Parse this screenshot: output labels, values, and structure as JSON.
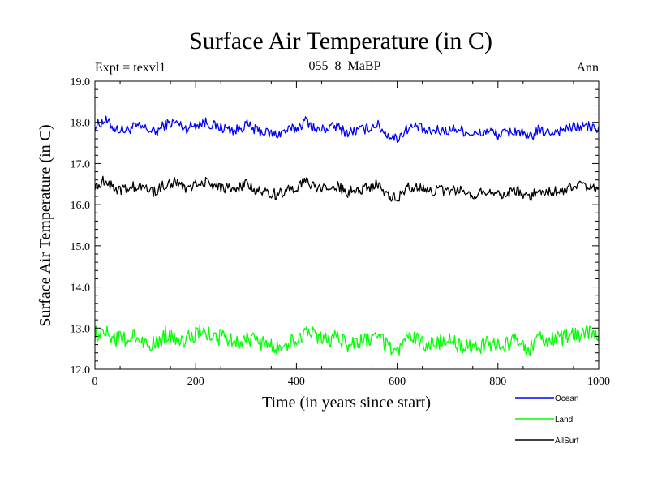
{
  "chart_data": {
    "type": "line",
    "title": "Surface Air Temperature (in C)",
    "subtitle": "055_8_MaBP",
    "top_left_label": "Expt = texvl1",
    "top_right_label": "Ann",
    "xlabel": "Time (in years since start)",
    "ylabel": "Surface Air Temperature (in C)",
    "xlim": [
      0,
      1000
    ],
    "ylim": [
      12.0,
      19.0
    ],
    "x_ticks": [
      0,
      200,
      400,
      600,
      800,
      1000
    ],
    "x_tick_labels": [
      "0",
      "200",
      "400",
      "600",
      "800",
      "1000"
    ],
    "y_ticks": [
      12.0,
      13.0,
      14.0,
      15.0,
      16.0,
      17.0,
      18.0,
      19.0
    ],
    "y_tick_labels": [
      "12.0",
      "13.0",
      "14.0",
      "15.0",
      "16.0",
      "17.0",
      "18.0",
      "19.0"
    ],
    "grid": false,
    "legend_position": "bottom-right",
    "series": [
      {
        "name": "Ocean",
        "color": "#0000ff",
        "x": [
          0,
          20,
          40,
          60,
          80,
          100,
          120,
          140,
          160,
          180,
          200,
          220,
          240,
          260,
          280,
          300,
          320,
          340,
          360,
          380,
          400,
          420,
          440,
          460,
          480,
          500,
          520,
          540,
          560,
          580,
          600,
          620,
          640,
          660,
          680,
          700,
          720,
          740,
          760,
          780,
          800,
          820,
          840,
          860,
          880,
          900,
          920,
          940,
          960,
          980,
          1000
        ],
        "values": [
          17.9,
          18.05,
          17.85,
          17.8,
          17.9,
          17.85,
          17.75,
          17.95,
          18.0,
          17.85,
          17.95,
          18.0,
          17.9,
          17.85,
          17.8,
          17.95,
          17.8,
          17.75,
          17.7,
          17.8,
          17.85,
          18.05,
          17.8,
          17.85,
          17.9,
          17.75,
          17.8,
          17.85,
          17.95,
          17.7,
          17.6,
          17.85,
          17.9,
          17.75,
          17.8,
          17.8,
          17.85,
          17.75,
          17.7,
          17.8,
          17.7,
          17.75,
          17.8,
          17.6,
          17.8,
          17.75,
          17.8,
          17.85,
          17.9,
          17.9,
          17.8
        ]
      },
      {
        "name": "Land",
        "color": "#00ff00",
        "x": [
          0,
          20,
          40,
          60,
          80,
          100,
          120,
          140,
          160,
          180,
          200,
          220,
          240,
          260,
          280,
          300,
          320,
          340,
          360,
          380,
          400,
          420,
          440,
          460,
          480,
          500,
          520,
          540,
          560,
          580,
          600,
          620,
          640,
          660,
          680,
          700,
          720,
          740,
          760,
          780,
          800,
          820,
          840,
          860,
          880,
          900,
          920,
          940,
          960,
          980,
          1000
        ],
        "values": [
          12.85,
          12.95,
          12.75,
          12.7,
          12.8,
          12.65,
          12.6,
          12.85,
          12.8,
          12.7,
          12.85,
          12.9,
          12.75,
          12.8,
          12.65,
          12.75,
          12.7,
          12.6,
          12.5,
          12.65,
          12.7,
          12.95,
          12.75,
          12.7,
          12.8,
          12.6,
          12.65,
          12.7,
          12.8,
          12.55,
          12.45,
          12.7,
          12.75,
          12.6,
          12.65,
          12.7,
          12.6,
          12.55,
          12.5,
          12.65,
          12.55,
          12.6,
          12.7,
          12.45,
          12.75,
          12.7,
          12.75,
          12.8,
          12.85,
          12.9,
          12.7
        ]
      },
      {
        "name": "AllSurf",
        "color": "#000000",
        "x": [
          0,
          20,
          40,
          60,
          80,
          100,
          120,
          140,
          160,
          180,
          200,
          220,
          240,
          260,
          280,
          300,
          320,
          340,
          360,
          380,
          400,
          420,
          440,
          460,
          480,
          500,
          520,
          540,
          560,
          580,
          600,
          620,
          640,
          660,
          680,
          700,
          720,
          740,
          760,
          780,
          800,
          820,
          840,
          860,
          880,
          900,
          920,
          940,
          960,
          980,
          1000
        ],
        "values": [
          16.45,
          16.6,
          16.4,
          16.35,
          16.45,
          16.4,
          16.3,
          16.5,
          16.55,
          16.4,
          16.5,
          16.55,
          16.45,
          16.4,
          16.35,
          16.5,
          16.35,
          16.3,
          16.25,
          16.35,
          16.4,
          16.6,
          16.35,
          16.4,
          16.45,
          16.3,
          16.35,
          16.4,
          16.5,
          16.25,
          16.15,
          16.4,
          16.45,
          16.3,
          16.35,
          16.35,
          16.35,
          16.3,
          16.25,
          16.35,
          16.25,
          16.3,
          16.35,
          16.15,
          16.35,
          16.3,
          16.35,
          16.4,
          16.45,
          16.45,
          16.35
        ]
      }
    ]
  }
}
